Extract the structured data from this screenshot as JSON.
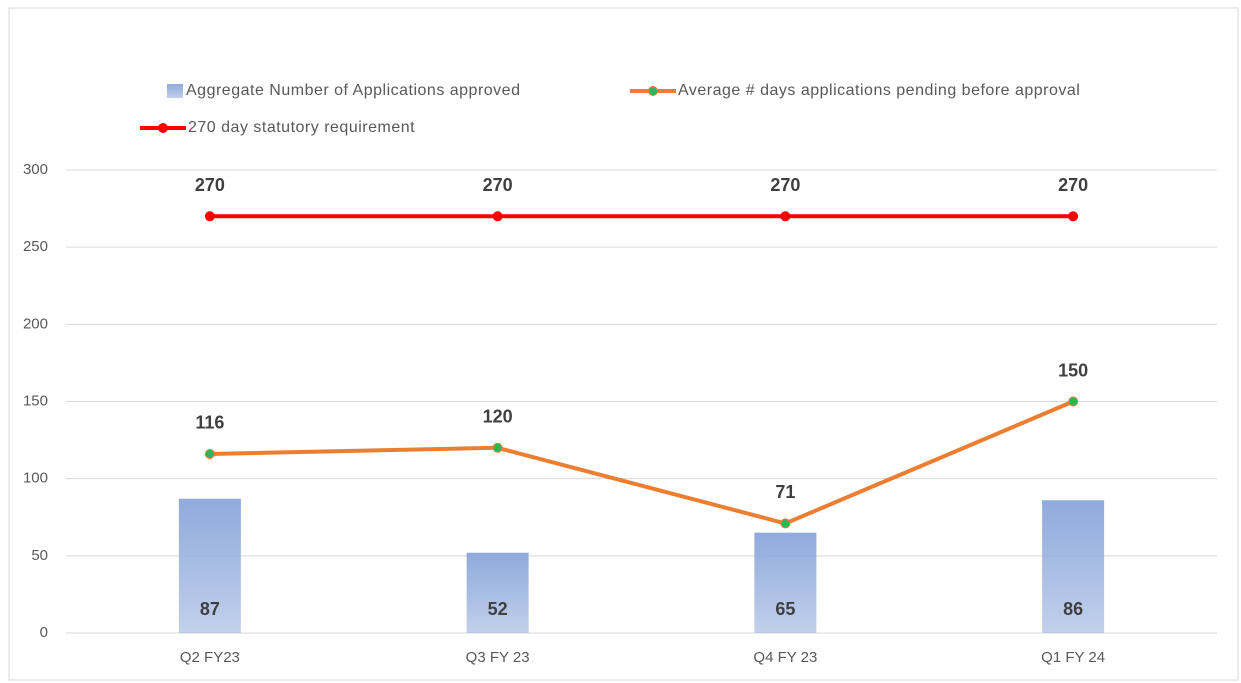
{
  "chart_data": {
    "type": "bar",
    "categories": [
      "Q2 FY23",
      "Q3 FY 23",
      "Q4 FY 23",
      "Q1 FY 24"
    ],
    "series": [
      {
        "name": "Aggregate Number of  Applications approved",
        "type": "bar",
        "color": "#8faadc",
        "values": [
          87,
          52,
          65,
          86
        ]
      },
      {
        "name": "Average # days applications pending before approval",
        "type": "line",
        "color": "#ed7d31",
        "marker_color": "#2db55d",
        "values": [
          116,
          120,
          71,
          150
        ]
      },
      {
        "name": "270 day statutory requirement",
        "type": "line",
        "color": "#ff0000",
        "marker_color": "#ff0000",
        "values": [
          270,
          270,
          270,
          270
        ]
      }
    ],
    "ylim": [
      0,
      300
    ],
    "yticks": [
      0,
      50,
      100,
      150,
      200,
      250,
      300
    ],
    "grid": true,
    "legend": "top"
  }
}
